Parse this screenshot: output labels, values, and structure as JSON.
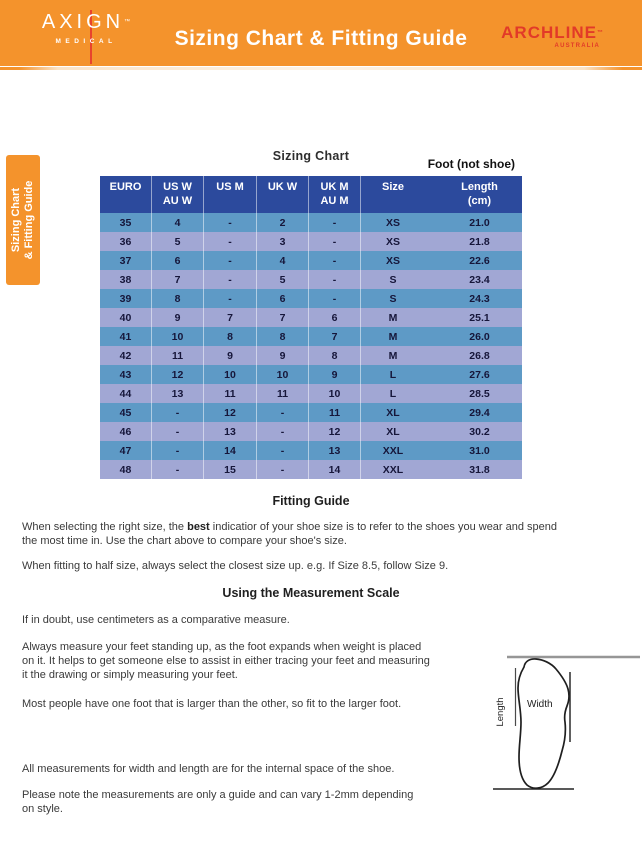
{
  "header": {
    "brand_left": {
      "name": "AXIGN",
      "tm": "™",
      "sub": "MEDICAL"
    },
    "title": "Sizing Chart & Fitting Guide",
    "brand_right": {
      "name": "ARCHLINE",
      "tm": "™",
      "sub": "AUSTRALIA"
    }
  },
  "side_tab": {
    "label": "Sizing Chart\n& Fitting Guide"
  },
  "sizing_chart": {
    "title": "Sizing Chart",
    "foot_note": "Foot (not shoe)",
    "columns": [
      {
        "line1": "EURO",
        "line2": ""
      },
      {
        "line1": "US W",
        "line2": "AU W"
      },
      {
        "line1": "US M",
        "line2": ""
      },
      {
        "line1": "UK W",
        "line2": ""
      },
      {
        "line1": "UK M",
        "line2": "AU M"
      },
      {
        "line1": "Size",
        "line2": ""
      },
      {
        "line1": "Length",
        "line2": "(cm)"
      }
    ],
    "rows": [
      [
        "35",
        "4",
        "-",
        "2",
        "-",
        "XS",
        "21.0"
      ],
      [
        "36",
        "5",
        "-",
        "3",
        "-",
        "XS",
        "21.8"
      ],
      [
        "37",
        "6",
        "-",
        "4",
        "-",
        "XS",
        "22.6"
      ],
      [
        "38",
        "7",
        "-",
        "5",
        "-",
        "S",
        "23.4"
      ],
      [
        "39",
        "8",
        "-",
        "6",
        "-",
        "S",
        "24.3"
      ],
      [
        "40",
        "9",
        "7",
        "7",
        "6",
        "M",
        "25.1"
      ],
      [
        "41",
        "10",
        "8",
        "8",
        "7",
        "M",
        "26.0"
      ],
      [
        "42",
        "11",
        "9",
        "9",
        "8",
        "M",
        "26.8"
      ],
      [
        "43",
        "12",
        "10",
        "10",
        "9",
        "L",
        "27.6"
      ],
      [
        "44",
        "13",
        "11",
        "11",
        "10",
        "L",
        "28.5"
      ],
      [
        "45",
        "-",
        "12",
        "-",
        "11",
        "XL",
        "29.4"
      ],
      [
        "46",
        "-",
        "13",
        "-",
        "12",
        "XL",
        "30.2"
      ],
      [
        "47",
        "-",
        "14",
        "-",
        "13",
        "XXL",
        "31.0"
      ],
      [
        "48",
        "-",
        "15",
        "-",
        "14",
        "XXL",
        "31.8"
      ]
    ]
  },
  "fitting_guide": {
    "heading": "Fitting Guide",
    "p1_pre": "When selecting the right size, the ",
    "p1_bold": "best",
    "p1_post": " indicatior of your shoe size is to refer to the shoes you wear and spend\nthe most time in. Use the chart above to compare your shoe's size.",
    "p2": "When fitting to half size, always select the closest size up. e.g. If Size 8.5, follow Size 9."
  },
  "measurement": {
    "heading": "Using the Measurement Scale",
    "p1": "If in doubt, use centimeters as a comparative measure.",
    "p2": "Always measure your feet standing up, as the foot expands when weight is placed\non it. It helps to get someone else to assist in either tracing your feet and measuring\nit the drawing or simply measuring your feet.",
    "p3": "Most people have one foot that is larger than the other, so fit to the larger foot.",
    "p4": "All measurements for width and length are for the internal space of the shoe.",
    "p5": "Please note the measurements are only a guide and can vary 1-2mm depending\non style.",
    "diagram": {
      "width_label": "Width",
      "length_label": "Length"
    }
  },
  "colors": {
    "orange": "#F4932C",
    "accent-red": "#E8432D",
    "archline-red": "#E23A28",
    "navy": "#2C4A9D",
    "steel": "#5E9AC6",
    "peri": "#A1A7D4",
    "cell-text": "#16163A"
  }
}
